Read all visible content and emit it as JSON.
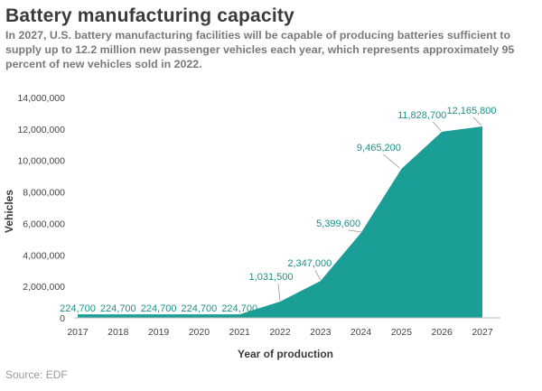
{
  "chart_data": {
    "type": "area",
    "title": "Battery manufacturing capacity",
    "subtitle": "In 2027, U.S. battery manufacturing facilities will be capable of producing batteries sufficient to supply up to 12.2 million new passenger vehicles each year, which represents approximately 95 percent of new vehicles sold in 2022.",
    "xlabel": "Year of production",
    "ylabel": "Vehicles",
    "x": [
      "2017",
      "2018",
      "2019",
      "2020",
      "2021",
      "2022",
      "2023",
      "2024",
      "2025",
      "2026",
      "2027"
    ],
    "series": [
      {
        "values": [
          224700,
          224700,
          224700,
          224700,
          224700,
          1031500,
          2347000,
          5399600,
          9465200,
          11828700,
          12165800
        ]
      }
    ],
    "data_labels": [
      "224,700",
      "224,700",
      "224,700",
      "224,700",
      "224,700",
      "1,031,500",
      "2,347,000",
      "5,399,600",
      "9,465,200",
      "11,828,700",
      "12,165,800"
    ],
    "ylim": [
      0,
      14000000
    ],
    "yticks": [
      0,
      2000000,
      4000000,
      6000000,
      8000000,
      10000000,
      12000000,
      14000000
    ],
    "ytick_labels": [
      "0",
      "2,000,000",
      "4,000,000",
      "6,000,000",
      "8,000,000",
      "10,000,000",
      "12,000,000",
      "14,000,000"
    ],
    "grid": false,
    "colors": {
      "area": "#1a9e95",
      "label": "#1f8f88",
      "axis": "#bbbbbb"
    }
  },
  "source": "Source: EDF"
}
